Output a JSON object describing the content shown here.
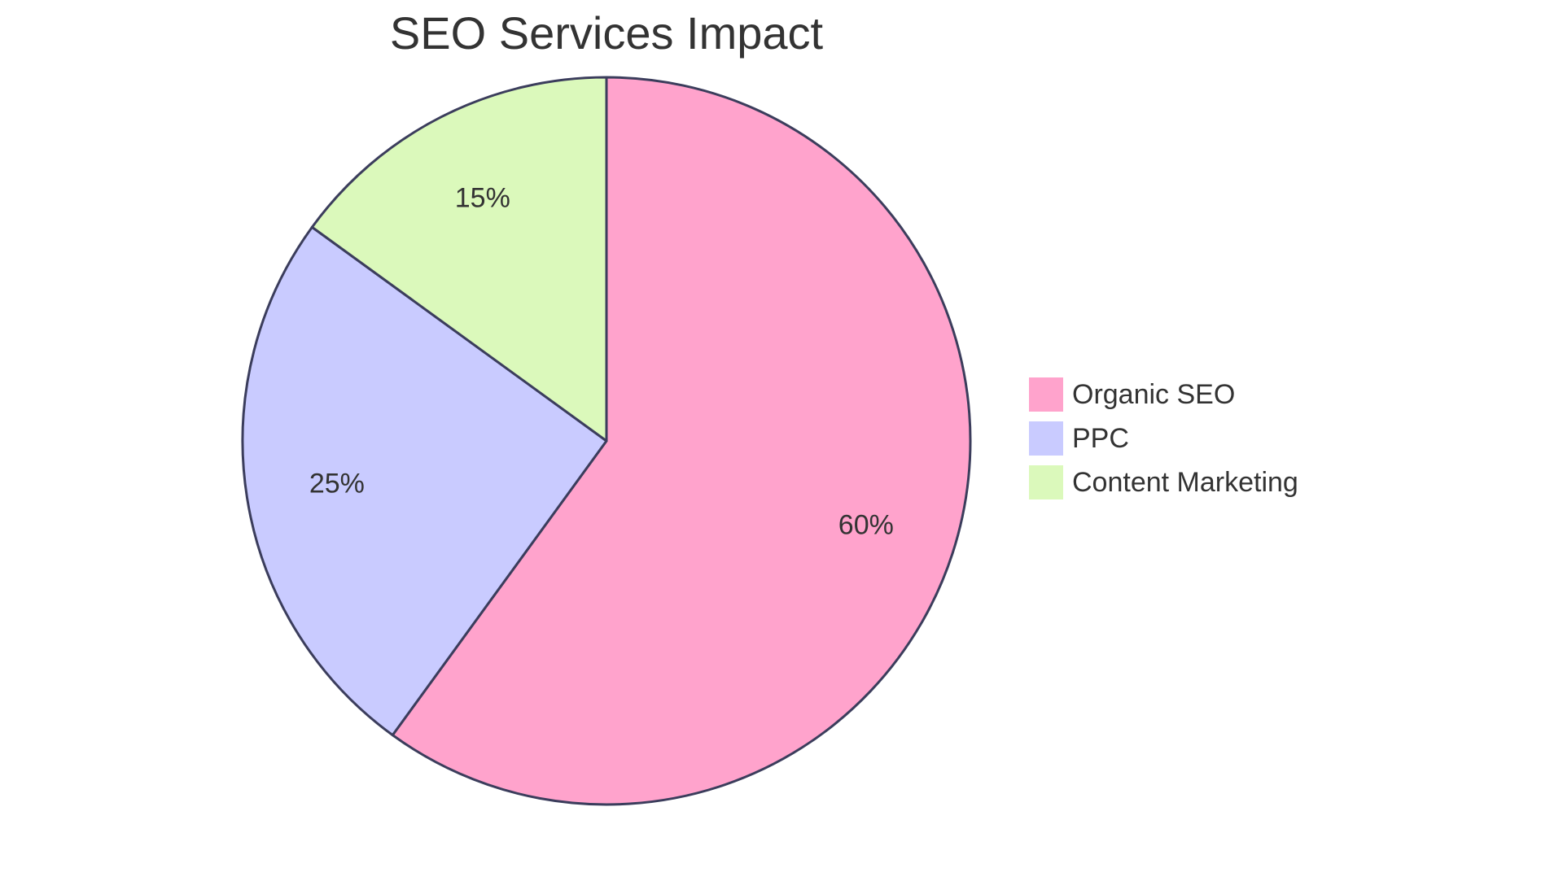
{
  "chart_data": {
    "type": "pie",
    "title": "SEO Services Impact",
    "categories": [
      "Organic SEO",
      "PPC",
      "Content Marketing"
    ],
    "values": [
      60,
      25,
      15
    ],
    "value_labels": [
      "60%",
      "25%",
      "15%"
    ],
    "colors": [
      "#FFA3CC",
      "#C9CBFF",
      "#DBF9BB"
    ],
    "stroke_color": "#3B3D5C",
    "start_angle_deg": 0,
    "direction": "clockwise",
    "legend": {
      "placement": "right",
      "items": [
        "Organic SEO",
        "PPC",
        "Content Marketing"
      ]
    }
  }
}
